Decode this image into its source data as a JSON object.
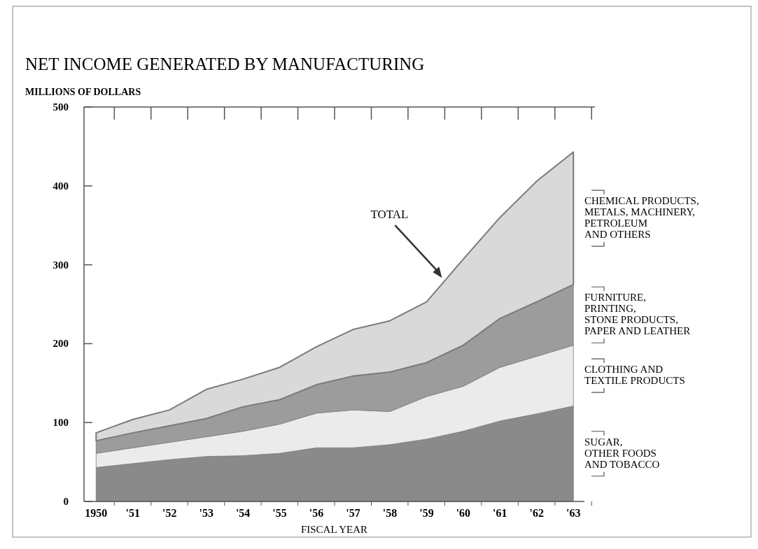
{
  "chart_data": {
    "type": "area",
    "stacked": true,
    "title": "NET INCOME GENERATED BY MANUFACTURING",
    "subtitle": "MILLIONS OF DOLLARS",
    "xlabel": "FISCAL YEAR",
    "x": [
      1950,
      1951,
      1952,
      1953,
      1954,
      1955,
      1956,
      1957,
      1958,
      1959,
      1960,
      1961,
      1962,
      1963
    ],
    "xlim": [
      1949.67,
      1963.3
    ],
    "xticks": [
      1950,
      {
        "value": 1951,
        "label": "'51"
      },
      {
        "value": 1952,
        "label": "'52"
      },
      {
        "value": 1953,
        "label": "'53"
      },
      {
        "value": 1954,
        "label": "'54"
      },
      {
        "value": 1955,
        "label": "'55"
      },
      {
        "value": 1956,
        "label": "'56"
      },
      {
        "value": 1957,
        "label": "'57"
      },
      {
        "value": 1958,
        "label": "'58"
      },
      {
        "value": 1959,
        "label": "'59"
      },
      {
        "value": 1960,
        "label": "'60"
      },
      {
        "value": 1961,
        "label": "'61"
      },
      {
        "value": 1962,
        "label": "'62"
      },
      {
        "value": 1963,
        "label": "'63"
      }
    ],
    "ylim": [
      0,
      500
    ],
    "yticks": [
      0,
      100,
      200,
      300,
      400,
      500
    ],
    "legend": false,
    "series": [
      {
        "name": "SUGAR,\nOTHER FOODS\nAND TOBACCO",
        "color": "#8a8a8a",
        "values": [
          43,
          48,
          53,
          57,
          58,
          61,
          68,
          68,
          72,
          79,
          89,
          102,
          111,
          121
        ]
      },
      {
        "name": "CLOTHING AND\nTEXTILE PRODUCTS",
        "color": "#ebebeb",
        "values": [
          18,
          20,
          22,
          25,
          31,
          37,
          44,
          48,
          42,
          54,
          57,
          68,
          73,
          77
        ]
      },
      {
        "name": "FURNITURE,\nPRINTING,\nSTONE PRODUCTS,\nPAPER AND LEATHER",
        "color": "#9c9c9c",
        "values": [
          16,
          19,
          21,
          23,
          31,
          31,
          36,
          43,
          50,
          43,
          52,
          62,
          69,
          77
        ]
      },
      {
        "name": "CHEMICAL PRODUCTS,\nMETALS, MACHINERY,\nPETROLEUM\nAND OTHERS",
        "color": "#d9d9d9",
        "values": [
          10,
          17,
          20,
          37,
          35,
          41,
          48,
          59,
          65,
          77,
          109,
          128,
          153,
          168
        ]
      }
    ],
    "annotations": [
      "TOTAL"
    ]
  }
}
